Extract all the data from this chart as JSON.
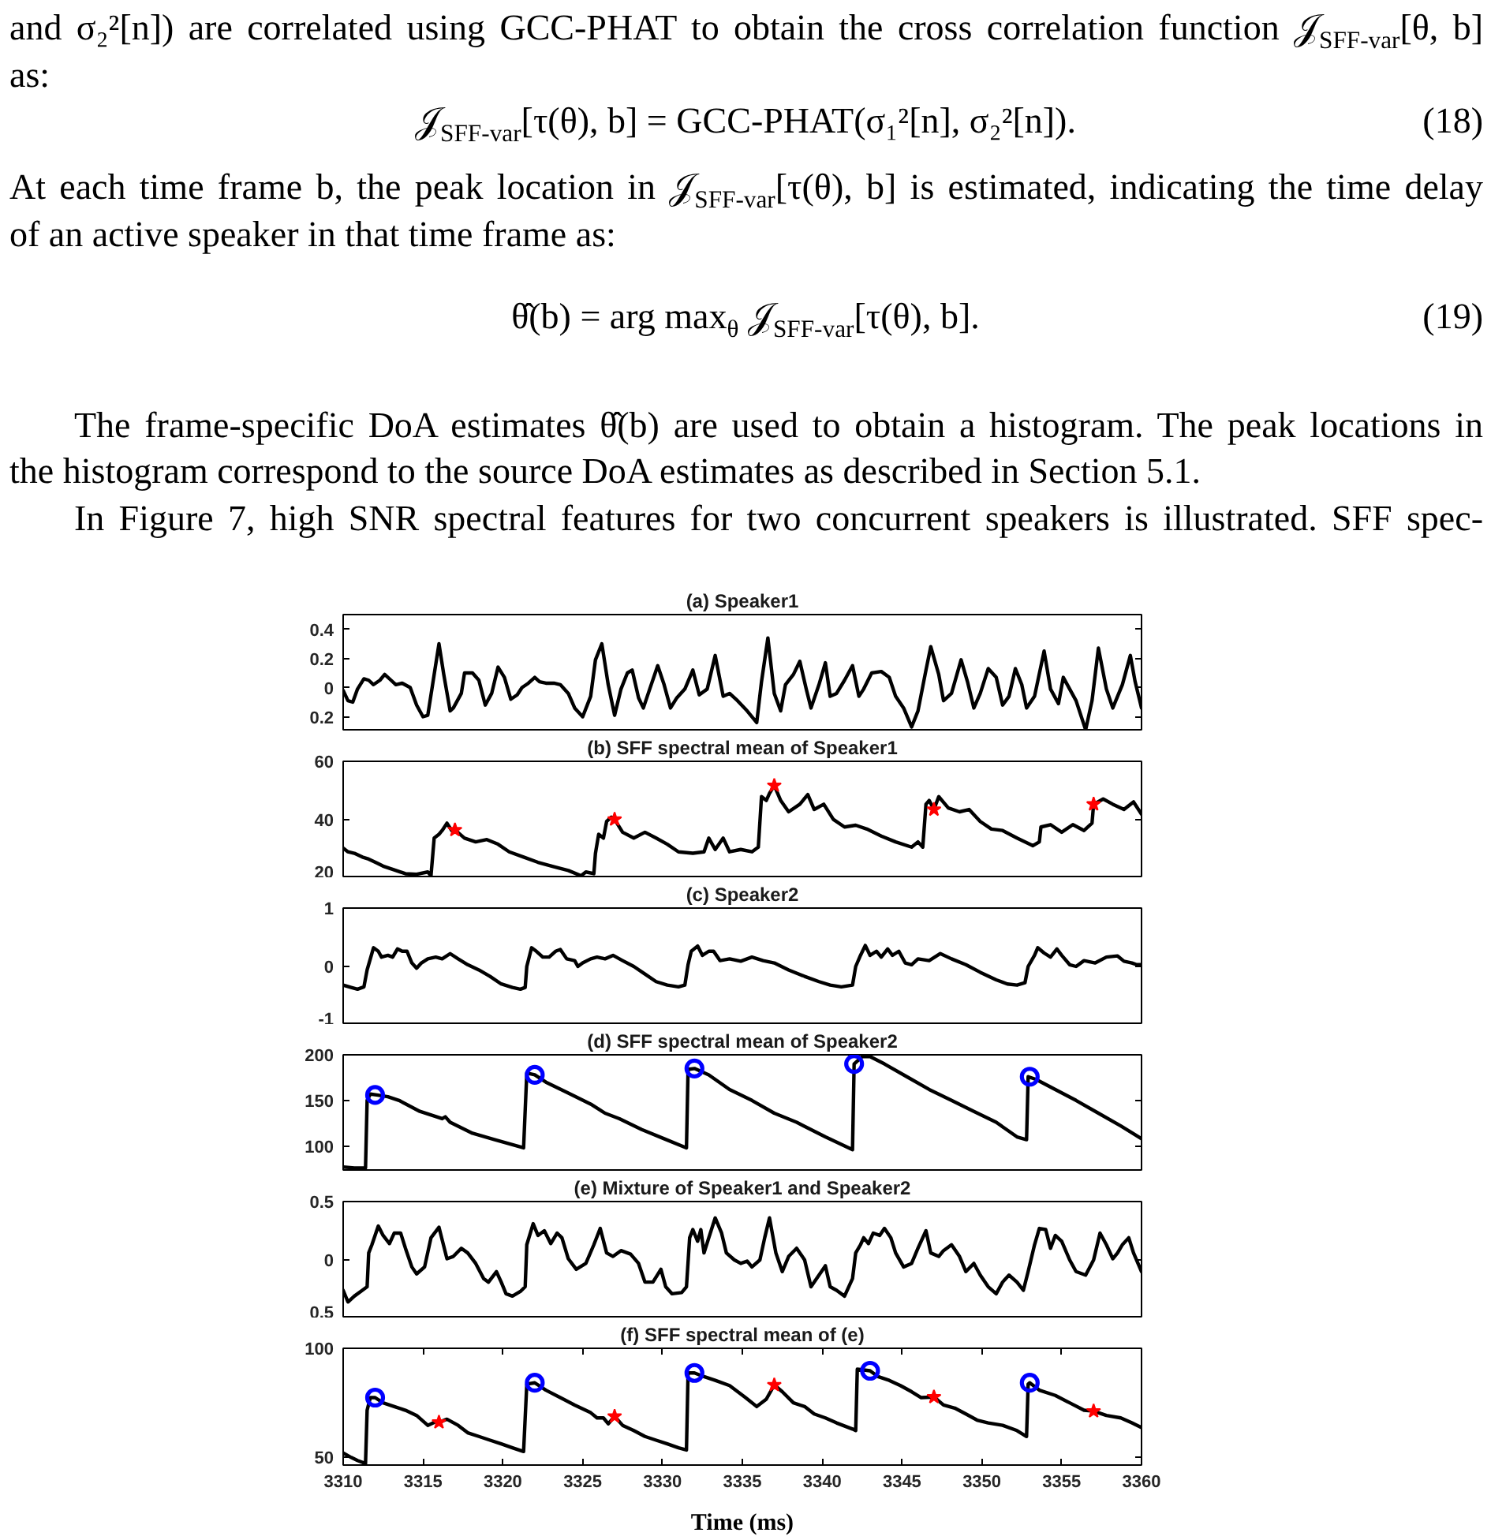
{
  "chart_data": [
    {
      "type": "other",
      "annotations": [
        "and σ₂²[n]) are correlated using GCC-PHAT to obtain the cross correlation function 𝒥$_{SFF-var}$[θ, b]",
        "as:",
        "𝒥$_{SFF-var}$[τ(θ), b] = GCC-PHAT(σ₁²[n], σ₂²[n]).",
        "(18)",
        "At each time frame b, the peak location in 𝒥$_{SFF-var}$[τ(θ), b] is estimated, indicating the time delay",
        "of an active speaker in that time frame as:",
        "θ̂(b) = arg max$_{θ}$ 𝒥$_{SFF-var}$[τ(θ), b].",
        "(19)",
        "The frame-specific DoA estimates θ̂(b) are used to obtain a histogram. The peak locations in",
        "the histogram correspond to the source DoA estimates as described in Section 5.1.",
        "In Figure 7, high SNR spectral features for two concurrent speakers is illustrated. SFF spec-"
      ]
    },
    {
      "type": "line",
      "title": "(a) Speaker1",
      "xlim": [
        3310,
        3360
      ],
      "ylim": [
        -0.3,
        0.5
      ],
      "yticks": [
        {
          "value": -0.2,
          "label": "0.2"
        },
        0,
        0.2,
        0.4
      ],
      "tick_labels": "y",
      "series": [
        {
          "color": "#000000",
          "x": [
            3310.0,
            3310.3,
            3310.6,
            3310.9,
            3311.3,
            3311.6,
            3311.9,
            3312.3,
            3312.6,
            3313.0,
            3313.3,
            3313.7,
            3314.2,
            3314.6,
            3315.0,
            3315.3,
            3315.6,
            3316.0,
            3316.3,
            3316.7,
            3316.9,
            3317.4,
            3317.6,
            3318.1,
            3318.5,
            3318.9,
            3319.3,
            3319.7,
            3320.1,
            3320.5,
            3320.9,
            3321.2,
            3321.6,
            3322.0,
            3322.3,
            3322.7,
            3323.2,
            3323.6,
            3324.1,
            3324.5,
            3325.0,
            3325.5,
            3325.8,
            3326.2,
            3326.6,
            3327.0,
            3327.4,
            3327.8,
            3328.1,
            3328.5,
            3328.8,
            3329.2,
            3329.7,
            3330.1,
            3330.5,
            3330.9,
            3331.4,
            3331.9,
            3332.3,
            3332.8,
            3333.3,
            3333.8,
            3334.2,
            3334.7,
            3335.3,
            3335.9,
            3336.2,
            3336.6,
            3337.0,
            3337.4,
            3337.7,
            3338.2,
            3338.6,
            3339.0,
            3339.3,
            3339.8,
            3340.2,
            3340.5,
            3340.9,
            3341.4,
            3341.9,
            3342.3,
            3342.6,
            3343.1,
            3343.7,
            3344.2,
            3344.6,
            3345.1,
            3345.6,
            3346.0,
            3346.5,
            3346.8,
            3347.3,
            3347.6,
            3348.1,
            3348.7,
            3349.1,
            3349.5,
            3349.9,
            3350.4,
            3350.9,
            3351.3,
            3351.7,
            3352.1,
            3352.5,
            3352.8,
            3353.3,
            3353.9,
            3354.3,
            3354.8,
            3355.1,
            3355.5,
            3355.9,
            3356.5,
            3356.9,
            3357.3,
            3357.8,
            3358.2,
            3358.8,
            3359.3,
            3359.6,
            3360.0
          ],
          "values": [
            -0.02,
            -0.09,
            -0.1,
            -0.01,
            0.06,
            0.05,
            0.02,
            0.05,
            0.09,
            0.05,
            0.02,
            0.03,
            0,
            -0.12,
            -0.2,
            -0.19,
            0.02,
            0.3,
            0.09,
            -0.16,
            -0.14,
            -0.04,
            0.1,
            0.1,
            0.05,
            -0.12,
            -0.04,
            0.14,
            0.07,
            -0.08,
            -0.05,
            0,
            0.03,
            0.07,
            0.04,
            0.03,
            0.03,
            0.02,
            -0.04,
            -0.14,
            -0.2,
            -0.06,
            0.19,
            0.3,
            0.02,
            -0.19,
            -0.01,
            0.1,
            0.12,
            -0.07,
            -0.14,
            -0.01,
            0.15,
            0.02,
            -0.14,
            -0.07,
            -0.01,
            0.12,
            -0.05,
            -0.01,
            0.22,
            -0.06,
            -0.04,
            -0.09,
            -0.16,
            -0.24,
            0.04,
            0.34,
            -0.04,
            -0.16,
            0.02,
            0.09,
            0.18,
            -0.01,
            -0.14,
            0.02,
            0.17,
            -0.06,
            -0.04,
            0.05,
            0.15,
            -0.06,
            -0.01,
            0.1,
            0.11,
            0.07,
            -0.06,
            -0.14,
            -0.27,
            -0.16,
            0.12,
            0.28,
            0.09,
            -0.09,
            -0.04,
            0.19,
            0.04,
            -0.14,
            -0.04,
            0.13,
            0.07,
            -0.12,
            -0.06,
            0.13,
            0.02,
            -0.14,
            -0.06,
            0.25,
            -0.01,
            -0.11,
            0.07,
            -0.01,
            -0.09,
            -0.29,
            -0.09,
            0.27,
            -0.01,
            -0.14,
            0.02,
            0.22,
            0.04,
            -0.14
          ]
        }
      ]
    },
    {
      "type": "line",
      "title": "(b) SFF spectral mean of Speaker1",
      "xlim": [
        3310,
        3360
      ],
      "ylim": [
        20,
        60
      ],
      "yticks": [
        20,
        40,
        60
      ],
      "tick_labels": "y",
      "series": [
        {
          "color": "#000000",
          "x": [
            3310.0,
            3310.3,
            3310.7,
            3311.2,
            3311.6,
            3312.1,
            3312.5,
            3313.2,
            3313.9,
            3314.6,
            3315.3,
            3315.5,
            3315.7,
            3316.0,
            3316.2,
            3316.5,
            3316.8,
            3317.0,
            3317.6,
            3318.3,
            3319.0,
            3319.7,
            3320.4,
            3321.3,
            3322.2,
            3323.2,
            3324.1,
            3324.9,
            3325.2,
            3325.7,
            3325.8,
            3326.0,
            3326.3,
            3326.5,
            3326.8,
            3327.0,
            3327.5,
            3328.2,
            3328.9,
            3329.6,
            3330.3,
            3331.0,
            3331.9,
            3332.6,
            3332.9,
            3333.3,
            3333.8,
            3334.2,
            3334.9,
            3335.6,
            3336.0,
            3336.2,
            3336.5,
            3336.7,
            3337.0,
            3337.4,
            3337.9,
            3338.6,
            3339.1,
            3339.5,
            3340.1,
            3340.7,
            3341.4,
            3342.1,
            3342.8,
            3343.7,
            3344.6,
            3345.6,
            3346.0,
            3346.3,
            3346.5,
            3346.7,
            3347.0,
            3347.3,
            3347.9,
            3348.6,
            3349.2,
            3349.9,
            3350.6,
            3351.3,
            3352.2,
            3353.2,
            3353.6,
            3353.7,
            3354.3,
            3355.0,
            3355.7,
            3356.4,
            3356.9,
            3357.0,
            3357.6,
            3358.2,
            3358.9,
            3359.5,
            3360.0
          ],
          "values": [
            30.3,
            29.0,
            28.5,
            27.2,
            26.5,
            25.2,
            24.1,
            22.8,
            21.5,
            21.3,
            22.1,
            20.8,
            33.7,
            35.0,
            36.3,
            38.8,
            36.3,
            36.5,
            33.7,
            32.4,
            33.2,
            31.6,
            29.0,
            27.2,
            25.4,
            23.9,
            22.6,
            20.8,
            22.1,
            21.5,
            28.5,
            35.0,
            33.7,
            39.4,
            40.9,
            40.1,
            35.7,
            33.7,
            35.7,
            33.7,
            31.6,
            29.0,
            28.5,
            29.0,
            33.7,
            29.8,
            33.7,
            29.0,
            29.8,
            29.0,
            30.6,
            47.9,
            46.6,
            49.0,
            51.7,
            46.6,
            42.7,
            45.3,
            48.6,
            43.5,
            45.3,
            40.1,
            37.5,
            38.1,
            36.8,
            34.4,
            32.4,
            30.6,
            32.4,
            30.6,
            45.3,
            46.6,
            43.5,
            47.9,
            44.0,
            42.7,
            43.5,
            39.4,
            36.8,
            36.3,
            33.7,
            31.1,
            32.4,
            37.5,
            38.3,
            35.7,
            38.3,
            36.3,
            38.8,
            45.3,
            47.1,
            45.3,
            43.5,
            46.1,
            41.9
          ]
        },
        {
          "type": "scatter",
          "marker": "star",
          "color": "#ff0000",
          "x": [
            3317,
            3327,
            3337,
            3347,
            3357
          ],
          "values": [
            36.5,
            40.1,
            51.7,
            43.5,
            45.3
          ]
        }
      ]
    },
    {
      "type": "line",
      "title": "(c) Speaker2",
      "xlim": [
        3310,
        3360
      ],
      "ylim": [
        -1,
        1
      ],
      "yticks": [
        -1,
        0,
        1
      ],
      "tick_labels": "y",
      "series": [
        {
          "color": "#000000",
          "x": [
            3310.0,
            3310.5,
            3310.9,
            3311.3,
            3311.5,
            3311.7,
            3311.9,
            3312.2,
            3312.4,
            3312.8,
            3313.1,
            3313.4,
            3313.7,
            3314.0,
            3314.3,
            3314.6,
            3314.9,
            3315.3,
            3315.8,
            3316.2,
            3316.7,
            3317.2,
            3317.8,
            3318.5,
            3319.2,
            3319.9,
            3320.6,
            3321.1,
            3321.4,
            3321.5,
            3321.8,
            3322.1,
            3322.5,
            3322.9,
            3323.3,
            3323.6,
            3324.0,
            3324.5,
            3324.7,
            3325.0,
            3325.5,
            3325.9,
            3326.4,
            3326.9,
            3327.5,
            3328.2,
            3328.9,
            3329.6,
            3330.3,
            3331.0,
            3331.4,
            3331.6,
            3331.8,
            3332.2,
            3332.5,
            3332.9,
            3333.2,
            3333.6,
            3334.2,
            3334.9,
            3335.6,
            3336.3,
            3337.0,
            3337.9,
            3338.9,
            3339.8,
            3340.5,
            3341.2,
            3341.9,
            3342.1,
            3342.4,
            3342.7,
            3343.0,
            3343.4,
            3343.7,
            3344.1,
            3344.4,
            3344.8,
            3345.2,
            3345.6,
            3346.0,
            3346.7,
            3347.4,
            3348.1,
            3349.0,
            3349.9,
            3350.9,
            3351.6,
            3352.2,
            3352.7,
            3352.9,
            3353.3,
            3353.5,
            3353.9,
            3354.3,
            3354.7,
            3355.0,
            3355.5,
            3355.9,
            3356.4,
            3357.1,
            3357.8,
            3358.5,
            3358.9,
            3359.4,
            3359.7,
            3360.0
          ],
          "values": [
            -0.32,
            -0.36,
            -0.39,
            -0.35,
            -0.06,
            0.13,
            0.32,
            0.26,
            0.16,
            0.19,
            0.16,
            0.3,
            0.26,
            0.26,
            0.06,
            -0.03,
            0.06,
            0.13,
            0.16,
            0.13,
            0.22,
            0.13,
            0.03,
            -0.06,
            -0.17,
            -0.3,
            -0.36,
            -0.39,
            -0.36,
            0,
            0.32,
            0.26,
            0.16,
            0.16,
            0.26,
            0.29,
            0.13,
            0.1,
            0,
            0.06,
            0.13,
            0.16,
            0.13,
            0.19,
            0.1,
            0,
            -0.13,
            -0.26,
            -0.32,
            -0.35,
            -0.32,
            0.03,
            0.26,
            0.35,
            0.19,
            0.26,
            0.26,
            0.1,
            0.13,
            0.09,
            0.16,
            0.1,
            0.06,
            -0.06,
            -0.17,
            -0.26,
            -0.32,
            -0.35,
            -0.32,
            0,
            0.19,
            0.36,
            0.19,
            0.26,
            0.16,
            0.3,
            0.19,
            0.26,
            0.06,
            0.03,
            0.13,
            0.1,
            0.22,
            0.13,
            0.03,
            -0.1,
            -0.23,
            -0.3,
            -0.32,
            -0.28,
            0,
            0.19,
            0.32,
            0.23,
            0.16,
            0.3,
            0.19,
            0.03,
            0,
            0.1,
            0.06,
            0.16,
            0.18,
            0.09,
            0.06,
            0.03,
            0.03
          ]
        }
      ]
    },
    {
      "type": "line",
      "title": "(d) SFF spectral mean of Speaker2",
      "xlim": [
        3310,
        3360
      ],
      "ylim": [
        72,
        200
      ],
      "yticks": [
        100,
        150,
        200
      ],
      "tick_labels": "y",
      "series": [
        {
          "color": "#000000",
          "x": [
            3310.0,
            3310.7,
            3311.4,
            3311.5,
            3311.7,
            3312.1,
            3312.8,
            3313.5,
            3314.8,
            3316.2,
            3316.4,
            3316.7,
            3318.1,
            3319.5,
            3321.3,
            3321.5,
            3322.0,
            3322.7,
            3324.1,
            3325.5,
            3326.4,
            3327.3,
            3328.7,
            3330.1,
            3331.5,
            3331.6,
            3332.0,
            3332.9,
            3334.2,
            3335.6,
            3337.0,
            3338.4,
            3340.2,
            3341.9,
            3342.0,
            3342.5,
            3343.0,
            3343.9,
            3345.3,
            3346.7,
            3348.1,
            3349.5,
            3350.9,
            3352.2,
            3352.8,
            3352.9,
            3353.4,
            3354.6,
            3355.9,
            3357.3,
            3358.7,
            3360.0
          ],
          "values": [
            77,
            76,
            76,
            150,
            157,
            156,
            154,
            150,
            138,
            130,
            132,
            126,
            114,
            107,
            98,
            180,
            178,
            170,
            158,
            146,
            136,
            130,
            118,
            108,
            98,
            184,
            185,
            178,
            162,
            150,
            136,
            126,
            110,
            96,
            190,
            198,
            198,
            190,
            176,
            162,
            150,
            138,
            126,
            110,
            107,
            176,
            173,
            162,
            150,
            136,
            122,
            108
          ]
        },
        {
          "type": "scatter",
          "marker": "circle",
          "color": "#0000ff",
          "x": [
            3312,
            3322,
            3332,
            3342,
            3353
          ],
          "values": [
            156,
            178,
            185,
            190,
            176
          ]
        }
      ]
    },
    {
      "type": "line",
      "title": "(e) Mixture of Speaker1 and Speaker2",
      "xlim": [
        3310,
        3360
      ],
      "ylim": [
        -0.5,
        0.5
      ],
      "yticks": [
        {
          "value": -0.5,
          "label": "0.5"
        },
        0,
        0.5
      ],
      "tick_labels": "y",
      "series": [
        {
          "color": "#000000",
          "x": [
            3310.0,
            3310.3,
            3310.7,
            3311.2,
            3311.5,
            3311.6,
            3311.8,
            3312.2,
            3312.5,
            3312.9,
            3313.2,
            3313.6,
            3313.9,
            3314.3,
            3314.6,
            3315.1,
            3315.5,
            3316.0,
            3316.5,
            3316.9,
            3317.4,
            3317.8,
            3318.3,
            3318.8,
            3319.1,
            3319.6,
            3319.9,
            3320.2,
            3320.6,
            3321.1,
            3321.4,
            3321.5,
            3321.9,
            3322.2,
            3322.6,
            3323.0,
            3323.4,
            3323.7,
            3324.1,
            3324.6,
            3325.2,
            3325.7,
            3326.1,
            3326.5,
            3326.9,
            3327.4,
            3328.0,
            3328.5,
            3328.9,
            3329.4,
            3329.9,
            3330.2,
            3330.6,
            3331.2,
            3331.5,
            3331.7,
            3331.9,
            3332.2,
            3332.4,
            3332.6,
            3332.9,
            3333.3,
            3333.7,
            3334.0,
            3334.5,
            3334.9,
            3335.3,
            3335.6,
            3336.1,
            3336.4,
            3336.7,
            3337.1,
            3337.5,
            3337.9,
            3338.4,
            3338.9,
            3339.3,
            3339.8,
            3340.2,
            3340.5,
            3340.9,
            3341.4,
            3341.9,
            3342.1,
            3342.4,
            3342.6,
            3342.9,
            3343.2,
            3343.6,
            3343.9,
            3344.3,
            3344.6,
            3345.1,
            3345.6,
            3346.0,
            3346.5,
            3346.8,
            3347.3,
            3347.6,
            3348.1,
            3348.6,
            3349.0,
            3349.5,
            3349.9,
            3350.4,
            3350.9,
            3351.3,
            3351.7,
            3352.2,
            3352.6,
            3352.9,
            3353.3,
            3353.6,
            3354.0,
            3354.3,
            3354.6,
            3355.0,
            3355.5,
            3355.9,
            3356.5,
            3357.0,
            3357.4,
            3357.8,
            3358.2,
            3358.5,
            3358.8,
            3359.2,
            3359.5,
            3360.0
          ],
          "values": [
            -0.26,
            -0.36,
            -0.31,
            -0.26,
            -0.23,
            0.06,
            0.13,
            0.29,
            0.21,
            0.14,
            0.23,
            0.23,
            0.1,
            -0.06,
            -0.12,
            -0.06,
            0.19,
            0.28,
            0.01,
            0.03,
            0.1,
            0.06,
            -0.03,
            -0.16,
            -0.19,
            -0.1,
            -0.19,
            -0.29,
            -0.31,
            -0.27,
            -0.23,
            0.13,
            0.31,
            0.21,
            0.25,
            0.14,
            0.23,
            0.19,
            0.01,
            -0.08,
            -0.03,
            0.13,
            0.27,
            0.06,
            0.03,
            0.08,
            0.05,
            -0.03,
            -0.19,
            -0.19,
            -0.08,
            -0.23,
            -0.29,
            -0.28,
            -0.23,
            0.19,
            0.26,
            0.16,
            0.26,
            0.06,
            0.19,
            0.36,
            0.23,
            0.06,
            0,
            -0.03,
            -0.01,
            -0.06,
            0,
            0.19,
            0.36,
            0.06,
            -0.1,
            0.03,
            0.1,
            0,
            -0.23,
            -0.13,
            -0.05,
            -0.23,
            -0.26,
            -0.31,
            -0.16,
            0.06,
            0.13,
            0.19,
            0.14,
            0.23,
            0.21,
            0.27,
            0.19,
            0.06,
            -0.06,
            -0.03,
            0.1,
            0.25,
            0.06,
            0.03,
            0.08,
            0.13,
            0.03,
            -0.1,
            -0.03,
            -0.13,
            -0.23,
            -0.29,
            -0.19,
            -0.13,
            -0.19,
            -0.26,
            -0.1,
            0.13,
            0.27,
            0.26,
            0.1,
            0.21,
            0.16,
            0,
            -0.1,
            -0.13,
            0,
            0.23,
            0.13,
            0.01,
            0.06,
            0.13,
            0.19,
            0.06,
            -0.1
          ]
        }
      ]
    },
    {
      "type": "line",
      "title": "(f) SFF spectral mean of (e)",
      "xlabel": "Time (ms)",
      "xlim": [
        3310,
        3360
      ],
      "xticks": [
        3310,
        3315,
        3320,
        3325,
        3330,
        3335,
        3340,
        3345,
        3350,
        3355,
        3360
      ],
      "ylim": [
        46.5,
        100
      ],
      "yticks": [
        50,
        100
      ],
      "series": [
        {
          "color": "#000000",
          "x": [
            3310.0,
            3310.5,
            3310.9,
            3311.4,
            3311.5,
            3311.7,
            3312.0,
            3312.5,
            3313.2,
            3313.9,
            3314.6,
            3315.3,
            3315.8,
            3316.0,
            3316.5,
            3317.2,
            3317.8,
            3318.5,
            3319.2,
            3319.9,
            3320.6,
            3321.3,
            3321.5,
            3322.0,
            3322.7,
            3323.6,
            3324.5,
            3325.5,
            3325.9,
            3326.3,
            3326.6,
            3327.0,
            3327.5,
            3328.2,
            3328.9,
            3329.6,
            3330.3,
            3331.0,
            3331.5,
            3331.6,
            3332.0,
            3332.6,
            3333.3,
            3334.2,
            3335.2,
            3335.9,
            3336.5,
            3337.0,
            3337.5,
            3338.2,
            3338.9,
            3339.5,
            3340.2,
            3340.9,
            3341.9,
            3342.1,
            3342.2,
            3343.0,
            3343.5,
            3344.2,
            3344.9,
            3345.6,
            3346.2,
            3347.0,
            3347.6,
            3348.3,
            3349.0,
            3349.7,
            3350.4,
            3351.3,
            3352.2,
            3352.8,
            3352.9,
            3353.0,
            3353.6,
            3354.6,
            3355.5,
            3356.4,
            3357.0,
            3357.8,
            3358.7,
            3359.4,
            3360.0
          ],
          "values": [
            52.0,
            50.0,
            48.6,
            47.2,
            71.6,
            77.4,
            77.4,
            75.0,
            73.3,
            71.6,
            69.2,
            64.7,
            66.4,
            66.1,
            67.5,
            64.7,
            61.3,
            59.6,
            57.9,
            56.2,
            54.4,
            52.7,
            83.6,
            84.2,
            80.8,
            77.4,
            74.0,
            70.5,
            68.1,
            68.1,
            65.4,
            68.8,
            64.7,
            62.3,
            59.6,
            57.9,
            56.2,
            54.4,
            53.4,
            88.7,
            88.7,
            87.0,
            85.3,
            82.9,
            77.4,
            73.3,
            76.7,
            83.2,
            80.1,
            75.0,
            73.3,
            69.9,
            68.1,
            65.8,
            63.0,
            62.3,
            90.4,
            89.7,
            87.0,
            85.3,
            82.9,
            80.1,
            77.4,
            77.7,
            74.0,
            72.6,
            69.9,
            67.1,
            65.8,
            64.7,
            62.3,
            59.6,
            83.6,
            84.2,
            80.8,
            78.4,
            75.0,
            71.6,
            71.2,
            69.2,
            68.1,
            65.8,
            63.7
          ]
        },
        {
          "type": "scatter",
          "marker": "circle",
          "color": "#0000ff",
          "x": [
            3312,
            3322,
            3332,
            3343,
            3353
          ],
          "values": [
            77.4,
            84.2,
            88.7,
            89.7,
            84.2
          ]
        },
        {
          "type": "scatter",
          "marker": "star",
          "color": "#ff0000",
          "x": [
            3316,
            3327,
            3337,
            3347,
            3357
          ],
          "values": [
            66.1,
            68.8,
            83.2,
            77.7,
            71.2
          ]
        }
      ]
    }
  ]
}
